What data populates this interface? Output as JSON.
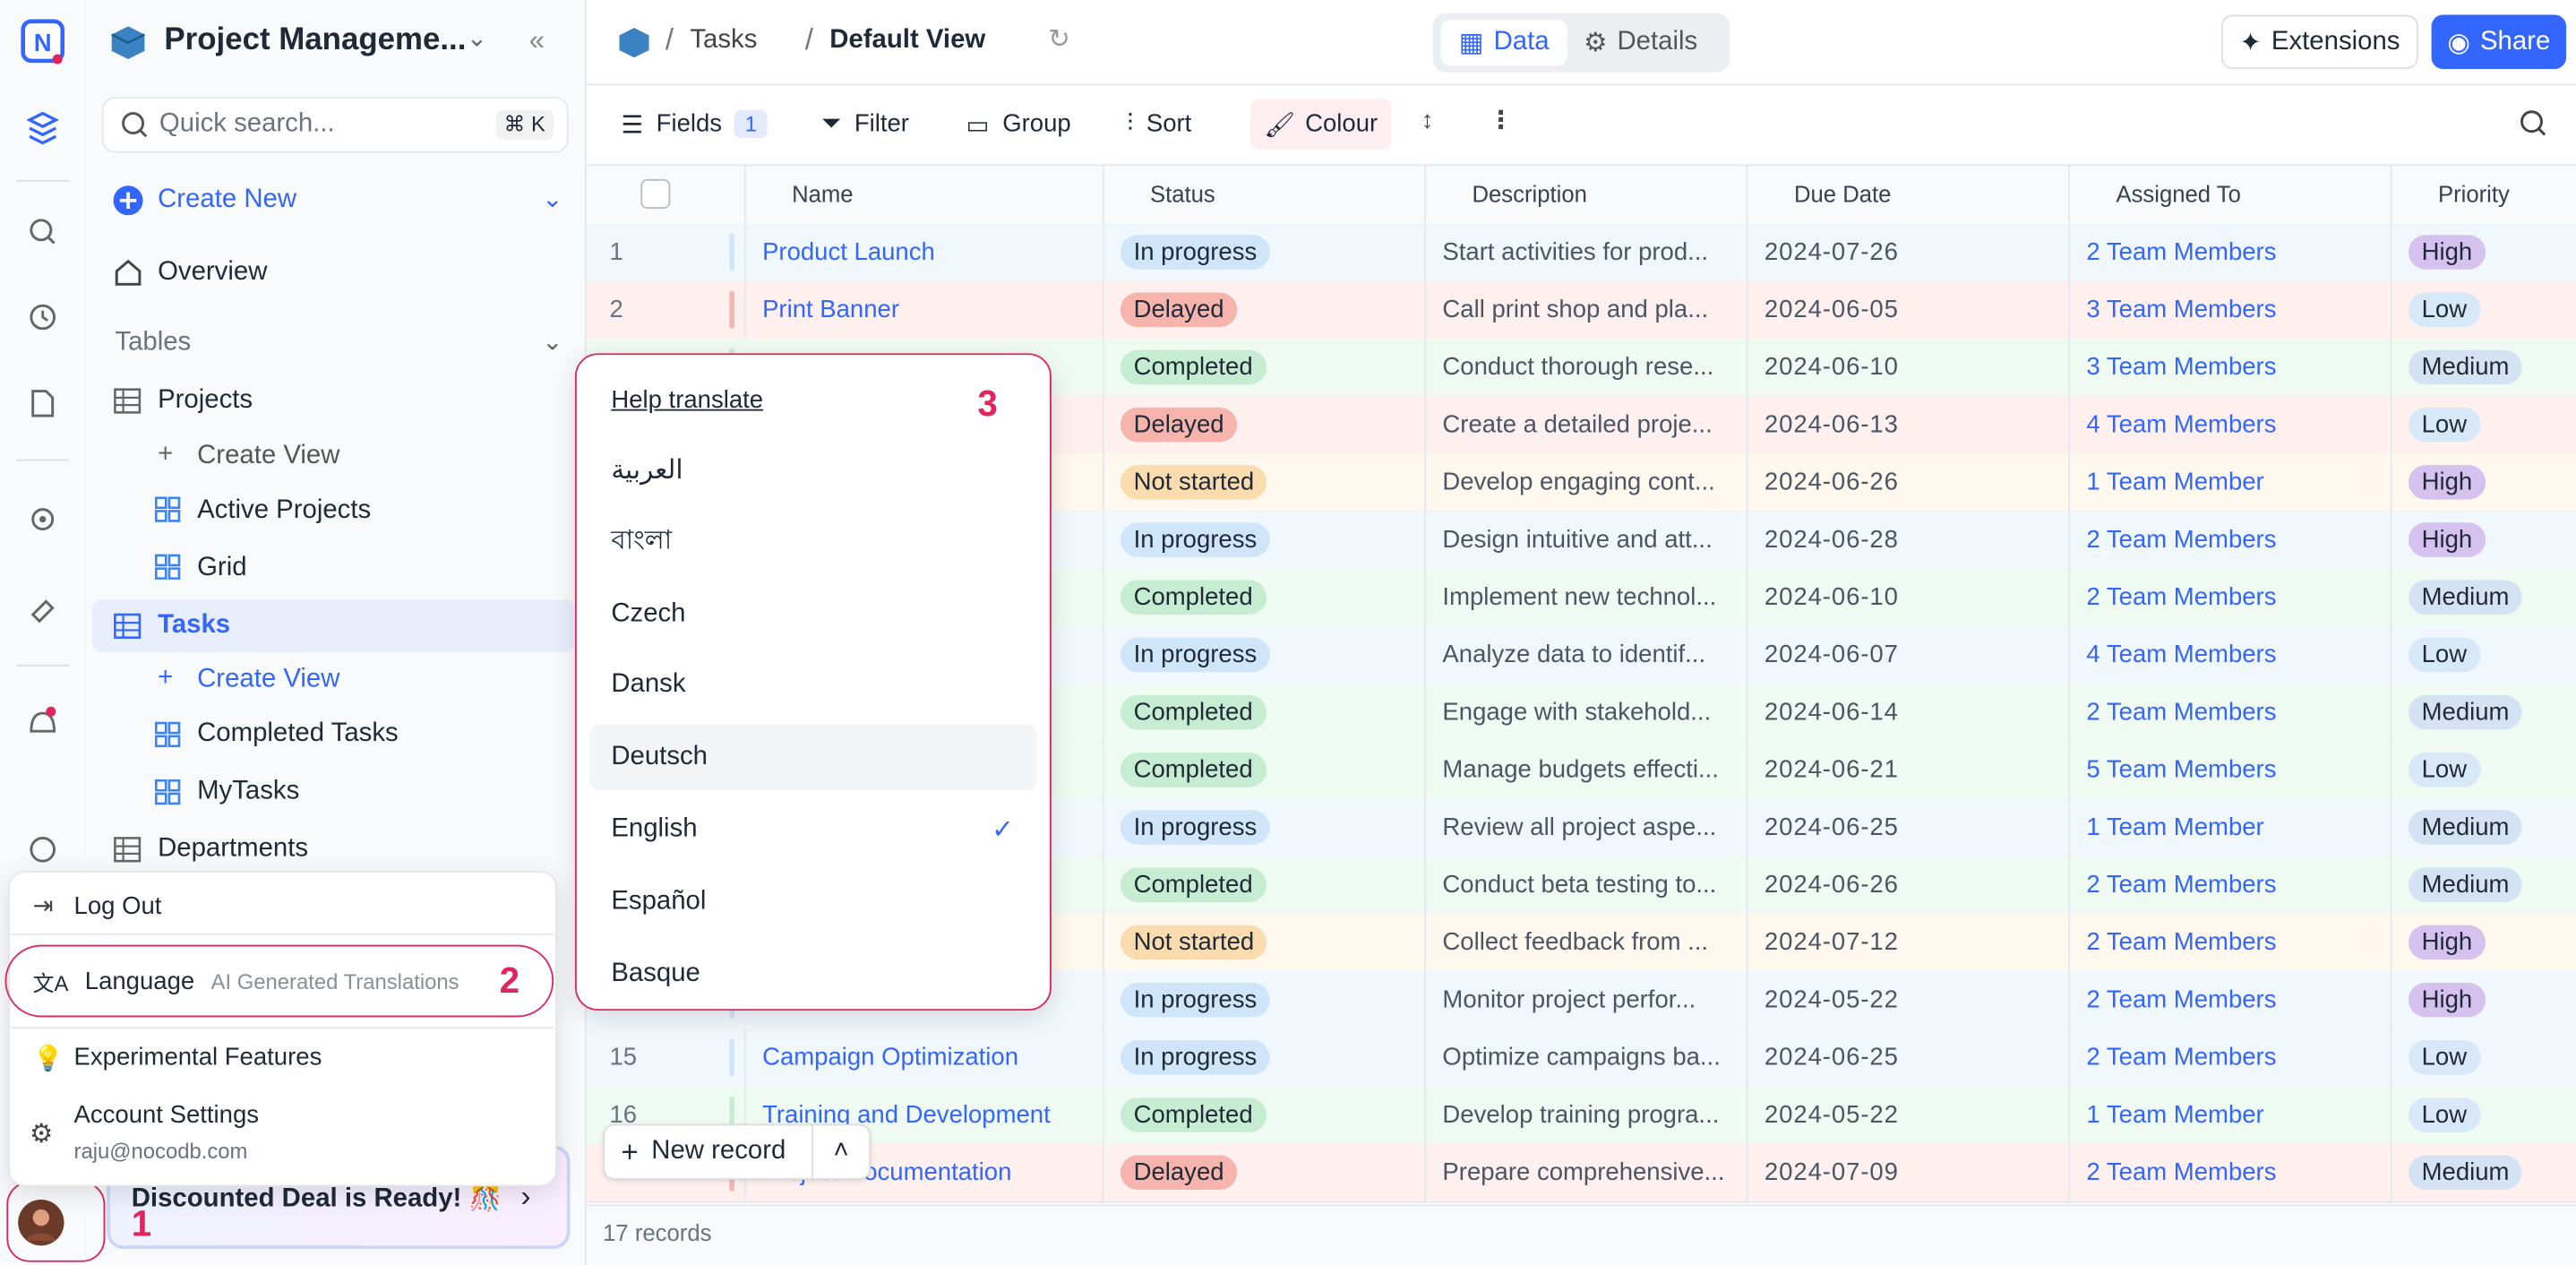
{
  "sidebar": {
    "base_title": "Project Manageme...",
    "search": "Quick search...",
    "shortcut": "⌘ K",
    "create_new": "Create New",
    "overview": "Overview",
    "tables_heading": "Tables",
    "projects": "Projects",
    "create_view_1": "Create View",
    "active_projects": "Active Projects",
    "grid": "Grid",
    "tasks": "Tasks",
    "create_view_2": "Create View",
    "completed_tasks": "Completed Tasks",
    "my_tasks": "MyTasks",
    "departments": "Departments",
    "promo": "Discounted Deal is Ready! 🎊"
  },
  "topbar": {
    "breadcrumb_table": "Tasks",
    "breadcrumb_view": "Default View",
    "tab_data": "Data",
    "tab_details": "Details",
    "extensions": "Extensions",
    "share": "Share"
  },
  "toolbar": {
    "fields": "Fields",
    "fields_count": "1",
    "filter": "Filter",
    "group": "Group",
    "sort": "Sort",
    "colour": "Colour"
  },
  "table": {
    "columns": [
      "Name",
      "Status",
      "Description",
      "Due Date",
      "Assigned To",
      "Priority"
    ],
    "status_colors": {
      "In progress": {
        "pill": "#cfe6fa",
        "row": "#f0f7fd"
      },
      "Delayed": {
        "pill": "#f6b4ad",
        "row": "#fdf0ef"
      },
      "Completed": {
        "pill": "#c6edd2",
        "row": "#effaf2"
      },
      "Not started": {
        "pill": "#fbdcae",
        "row": "#fef8ee"
      }
    },
    "priority_colors": {
      "High": "#d6c2ef",
      "Low": "#d7e8f8",
      "Medium": "#d4e3f3"
    },
    "rows": [
      [
        1,
        "Product Launch",
        "In progress",
        "Start activities for prod...",
        "2024-07-26",
        "2 Team Members",
        "High"
      ],
      [
        2,
        "Print Banner",
        "Delayed",
        "Call print shop and pla...",
        "2024-06-05",
        "3 Team Members",
        "Low"
      ],
      [
        null,
        null,
        "Completed",
        "Conduct thorough rese...",
        "2024-06-10",
        "3 Team Members",
        "Medium"
      ],
      [
        null,
        null,
        "Delayed",
        "Create a detailed proje...",
        "2024-06-13",
        "4 Team Members",
        "Low"
      ],
      [
        null,
        null,
        "Not started",
        "Develop engaging cont...",
        "2024-06-26",
        "1 Team Member",
        "High"
      ],
      [
        null,
        null,
        "In progress",
        "Design intuitive and att...",
        "2024-06-28",
        "2 Team Members",
        "High"
      ],
      [
        null,
        null,
        "Completed",
        "Implement new technol...",
        "2024-06-10",
        "2 Team Members",
        "Medium"
      ],
      [
        null,
        null,
        "In progress",
        "Analyze data to identif...",
        "2024-06-07",
        "4 Team Members",
        "Low"
      ],
      [
        null,
        null,
        "Completed",
        "Engage with stakehold...",
        "2024-06-14",
        "2 Team Members",
        "Medium"
      ],
      [
        null,
        null,
        "Completed",
        "Manage budgets effecti...",
        "2024-06-21",
        "5 Team Members",
        "Low"
      ],
      [
        null,
        null,
        "In progress",
        "Review all project aspe...",
        "2024-06-25",
        "1 Team Member",
        "Medium"
      ],
      [
        null,
        null,
        "Completed",
        "Conduct beta testing to...",
        "2024-06-26",
        "2 Team Members",
        "Medium"
      ],
      [
        null,
        null,
        "Not started",
        "Collect feedback from ...",
        "2024-07-12",
        "2 Team Members",
        "High"
      ],
      [
        null,
        null,
        "In progress",
        "Monitor project perfor...",
        "2024-05-22",
        "2 Team Members",
        "High"
      ],
      [
        15,
        "Campaign Optimization",
        "In progress",
        "Optimize campaigns ba...",
        "2024-06-25",
        "2 Team Members",
        "Low"
      ],
      [
        16,
        "Training and Development",
        "Completed",
        "Develop training progra...",
        "2024-05-22",
        "1 Team Member",
        "Low"
      ],
      [
        null,
        "Project Documentation",
        "Delayed",
        "Prepare comprehensive...",
        "2024-07-09",
        "2 Team Members",
        "Medium"
      ]
    ],
    "footer": "17 records"
  },
  "new_record": "New record",
  "account_menu": {
    "log_out": "Log Out",
    "language": "Language",
    "language_note": "AI Generated Translations",
    "experimental": "Experimental Features",
    "account_settings": "Account Settings",
    "email": "raju@nocodb.com"
  },
  "language_menu": {
    "help": "Help translate",
    "options": [
      "العربية",
      "বাংলা",
      "Czech",
      "Dansk",
      "Deutsch",
      "English",
      "Español",
      "Basque"
    ],
    "highlighted": 4,
    "selected": 5
  },
  "annotations": [
    "1",
    "2",
    "3"
  ]
}
